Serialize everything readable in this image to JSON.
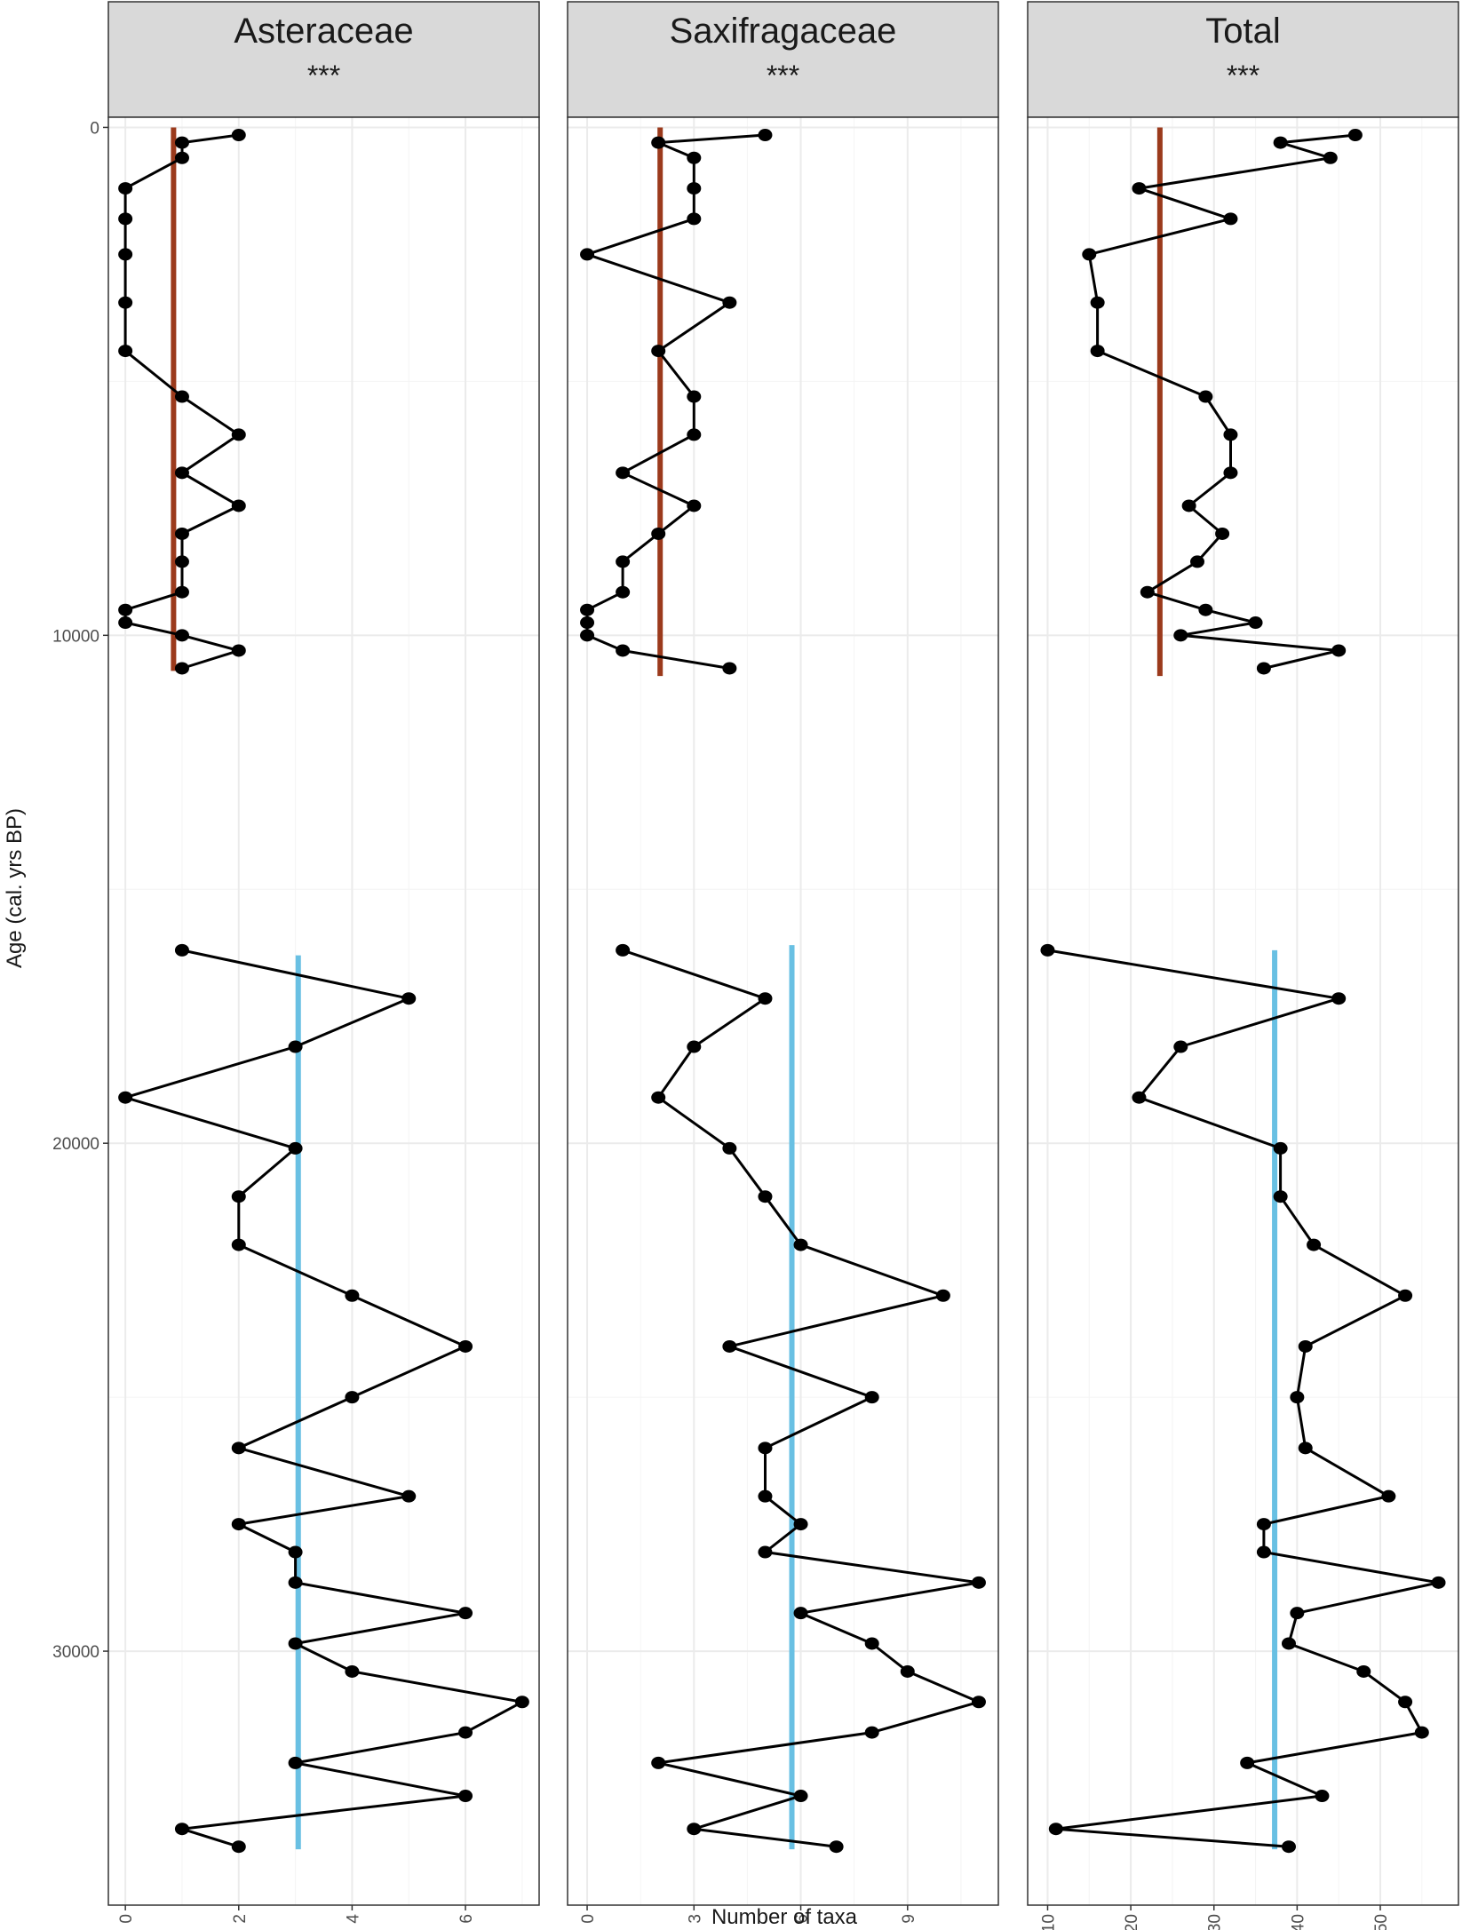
{
  "chart_data": {
    "type": "line",
    "orientation": "vertical-profile",
    "xlabel": "Number of taxa",
    "ylabel": "Age (cal. yrs BP)",
    "ylim": [
      -200,
      35000
    ],
    "y_reversed": true,
    "y_ticks": [
      0,
      10000,
      20000,
      30000
    ],
    "y_tick_labels": [
      "0",
      "10000",
      "20000",
      "30000"
    ],
    "grid": true,
    "colors": {
      "points_and_line": "#000000",
      "holocene_mean": "#9b3a1c",
      "pleistocene_mean": "#69c0e3",
      "strip_fill": "#d9d9d9"
    },
    "panels": [
      {
        "title": "Asteraceae",
        "significance": "***",
        "xlim": [
          -0.3,
          7.3
        ],
        "x_ticks": [
          0,
          2,
          4,
          6
        ],
        "x_tick_labels": [
          "0",
          "2",
          "4",
          "6"
        ],
        "mean_lines": [
          {
            "period": "holocene",
            "value": 0.85,
            "age_from": 0,
            "age_to": 10700
          },
          {
            "period": "pleistocene",
            "value": 3.05,
            "age_from": 16300,
            "age_to": 33900
          }
        ],
        "points": [
          {
            "age": 150,
            "value": 2
          },
          {
            "age": 300,
            "value": 1
          },
          {
            "age": 600,
            "value": 1
          },
          {
            "age": 1200,
            "value": 0
          },
          {
            "age": 1800,
            "value": 0
          },
          {
            "age": 2500,
            "value": 0
          },
          {
            "age": 3450,
            "value": 0
          },
          {
            "age": 4400,
            "value": 0
          },
          {
            "age": 5300,
            "value": 1
          },
          {
            "age": 6050,
            "value": 2
          },
          {
            "age": 6800,
            "value": 1
          },
          {
            "age": 7450,
            "value": 2
          },
          {
            "age": 8000,
            "value": 1
          },
          {
            "age": 8550,
            "value": 1
          },
          {
            "age": 9150,
            "value": 1
          },
          {
            "age": 9500,
            "value": 0
          },
          {
            "age": 9750,
            "value": 0
          },
          {
            "age": 10000,
            "value": 1
          },
          {
            "age": 10300,
            "value": 2
          },
          {
            "age": 10650,
            "value": 1
          },
          {
            "age": 16200,
            "value": 1
          },
          {
            "age": 17150,
            "value": 5
          },
          {
            "age": 18100,
            "value": 3
          },
          {
            "age": 19100,
            "value": 0
          },
          {
            "age": 20100,
            "value": 3
          },
          {
            "age": 21050,
            "value": 2
          },
          {
            "age": 22000,
            "value": 2
          },
          {
            "age": 23000,
            "value": 4
          },
          {
            "age": 24000,
            "value": 6
          },
          {
            "age": 25000,
            "value": 4
          },
          {
            "age": 26000,
            "value": 2
          },
          {
            "age": 26950,
            "value": 5
          },
          {
            "age": 27500,
            "value": 2
          },
          {
            "age": 28050,
            "value": 3
          },
          {
            "age": 28650,
            "value": 3
          },
          {
            "age": 29250,
            "value": 6
          },
          {
            "age": 29850,
            "value": 3
          },
          {
            "age": 30400,
            "value": 4
          },
          {
            "age": 31000,
            "value": 7
          },
          {
            "age": 31600,
            "value": 6
          },
          {
            "age": 32200,
            "value": 3
          },
          {
            "age": 32850,
            "value": 6
          },
          {
            "age": 33500,
            "value": 1
          },
          {
            "age": 33850,
            "value": 2
          }
        ]
      },
      {
        "title": "Saxifragaceae",
        "significance": "***",
        "xlim": [
          -0.55,
          11.55
        ],
        "x_ticks": [
          0,
          3,
          6,
          9
        ],
        "x_tick_labels": [
          "0",
          "3",
          "6",
          "9"
        ],
        "mean_lines": [
          {
            "period": "holocene",
            "value": 2.05,
            "age_from": 0,
            "age_to": 10800
          },
          {
            "period": "pleistocene",
            "value": 5.75,
            "age_from": 16100,
            "age_to": 33900
          }
        ],
        "points": [
          {
            "age": 150,
            "value": 5
          },
          {
            "age": 300,
            "value": 2
          },
          {
            "age": 600,
            "value": 3
          },
          {
            "age": 1200,
            "value": 3
          },
          {
            "age": 1800,
            "value": 3
          },
          {
            "age": 2500,
            "value": 0
          },
          {
            "age": 3450,
            "value": 4
          },
          {
            "age": 4400,
            "value": 2
          },
          {
            "age": 5300,
            "value": 3
          },
          {
            "age": 6050,
            "value": 3
          },
          {
            "age": 6800,
            "value": 1
          },
          {
            "age": 7450,
            "value": 3
          },
          {
            "age": 8000,
            "value": 2
          },
          {
            "age": 8550,
            "value": 1
          },
          {
            "age": 9150,
            "value": 1
          },
          {
            "age": 9500,
            "value": 0
          },
          {
            "age": 9750,
            "value": 0
          },
          {
            "age": 10000,
            "value": 0
          },
          {
            "age": 10300,
            "value": 1
          },
          {
            "age": 10650,
            "value": 4
          },
          {
            "age": 16200,
            "value": 1
          },
          {
            "age": 17150,
            "value": 5
          },
          {
            "age": 18100,
            "value": 3
          },
          {
            "age": 19100,
            "value": 2
          },
          {
            "age": 20100,
            "value": 4
          },
          {
            "age": 21050,
            "value": 5
          },
          {
            "age": 22000,
            "value": 6
          },
          {
            "age": 23000,
            "value": 10
          },
          {
            "age": 24000,
            "value": 4
          },
          {
            "age": 25000,
            "value": 8
          },
          {
            "age": 26000,
            "value": 5
          },
          {
            "age": 26950,
            "value": 5
          },
          {
            "age": 27500,
            "value": 6
          },
          {
            "age": 28050,
            "value": 5
          },
          {
            "age": 28650,
            "value": 11
          },
          {
            "age": 29250,
            "value": 6
          },
          {
            "age": 29850,
            "value": 8
          },
          {
            "age": 30400,
            "value": 9
          },
          {
            "age": 31000,
            "value": 11
          },
          {
            "age": 31600,
            "value": 8
          },
          {
            "age": 32200,
            "value": 2
          },
          {
            "age": 32850,
            "value": 6
          },
          {
            "age": 33500,
            "value": 3
          },
          {
            "age": 33850,
            "value": 7
          }
        ]
      },
      {
        "title": "Total",
        "significance": "***",
        "xlim": [
          7.6,
          59.4
        ],
        "x_ticks": [
          10,
          20,
          30,
          40,
          50
        ],
        "x_tick_labels": [
          "10",
          "20",
          "30",
          "40",
          "50"
        ],
        "mean_lines": [
          {
            "period": "holocene",
            "value": 23.5,
            "age_from": 0,
            "age_to": 10800
          },
          {
            "period": "pleistocene",
            "value": 37.3,
            "age_from": 16200,
            "age_to": 33900
          }
        ],
        "points": [
          {
            "age": 150,
            "value": 47
          },
          {
            "age": 300,
            "value": 38
          },
          {
            "age": 600,
            "value": 44
          },
          {
            "age": 1200,
            "value": 21
          },
          {
            "age": 1800,
            "value": 32
          },
          {
            "age": 2500,
            "value": 15
          },
          {
            "age": 3450,
            "value": 16
          },
          {
            "age": 4400,
            "value": 16
          },
          {
            "age": 5300,
            "value": 29
          },
          {
            "age": 6050,
            "value": 32
          },
          {
            "age": 6800,
            "value": 32
          },
          {
            "age": 7450,
            "value": 27
          },
          {
            "age": 8000,
            "value": 31
          },
          {
            "age": 8550,
            "value": 28
          },
          {
            "age": 9150,
            "value": 22
          },
          {
            "age": 9500,
            "value": 29
          },
          {
            "age": 9750,
            "value": 35
          },
          {
            "age": 10000,
            "value": 26
          },
          {
            "age": 10300,
            "value": 45
          },
          {
            "age": 10650,
            "value": 36
          },
          {
            "age": 16200,
            "value": 10
          },
          {
            "age": 17150,
            "value": 45
          },
          {
            "age": 18100,
            "value": 26
          },
          {
            "age": 19100,
            "value": 21
          },
          {
            "age": 20100,
            "value": 38
          },
          {
            "age": 21050,
            "value": 38
          },
          {
            "age": 22000,
            "value": 42
          },
          {
            "age": 23000,
            "value": 53
          },
          {
            "age": 24000,
            "value": 41
          },
          {
            "age": 25000,
            "value": 40
          },
          {
            "age": 26000,
            "value": 41
          },
          {
            "age": 26950,
            "value": 51
          },
          {
            "age": 27500,
            "value": 36
          },
          {
            "age": 28050,
            "value": 36
          },
          {
            "age": 28650,
            "value": 57
          },
          {
            "age": 29250,
            "value": 40
          },
          {
            "age": 29850,
            "value": 39
          },
          {
            "age": 30400,
            "value": 48
          },
          {
            "age": 31000,
            "value": 53
          },
          {
            "age": 31600,
            "value": 55
          },
          {
            "age": 32200,
            "value": 34
          },
          {
            "age": 32850,
            "value": 43
          },
          {
            "age": 33500,
            "value": 11
          },
          {
            "age": 33850,
            "value": 39
          }
        ]
      }
    ]
  }
}
